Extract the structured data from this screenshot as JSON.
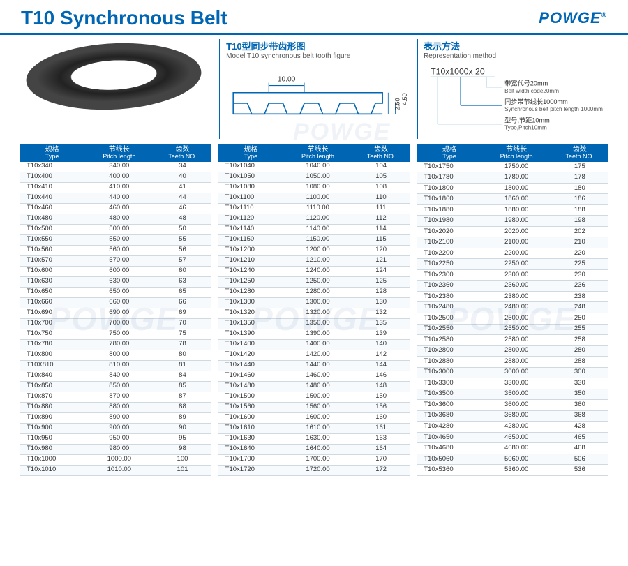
{
  "header": {
    "title": "T10 Synchronous Belt",
    "logo_text": "POWGE",
    "logo_reg": "®"
  },
  "figures": {
    "tooth": {
      "title_cn": "T10型同步带齿形图",
      "title_en": "Model T10 synchronous belt tooth figure",
      "pitch_dim": "10.00",
      "depth_dim": "2.50",
      "height_dim": "4.50"
    },
    "representation": {
      "title_cn": "表示方法",
      "title_en": "Representation method",
      "example": "T10x1000x 20",
      "lines": [
        {
          "cn": "带宽代号20mm",
          "en": "Belt width code20mm"
        },
        {
          "cn": "同步带节线长1000mm",
          "en": "Synchronous belt pitch length 1000mm"
        },
        {
          "cn": "型号,节距10mm",
          "en": "Type,Pitch10mm"
        }
      ]
    }
  },
  "table_headers": {
    "type_cn": "规格",
    "type_en": "Type",
    "pitch_cn": "节线长",
    "pitch_en": "Pitch length",
    "teeth_cn": "齿数",
    "teeth_en": "Teeth NO."
  },
  "columns": [
    {
      "rows": [
        [
          "T10x340",
          "340.00",
          "34"
        ],
        [
          "T10x400",
          "400.00",
          "40"
        ],
        [
          "T10x410",
          "410.00",
          "41"
        ],
        [
          "T10x440",
          "440.00",
          "44"
        ],
        [
          "T10x460",
          "460.00",
          "46"
        ],
        [
          "T10x480",
          "480.00",
          "48"
        ],
        [
          "T10x500",
          "500.00",
          "50"
        ],
        [
          "T10x550",
          "550.00",
          "55"
        ],
        [
          "T10x560",
          "560.00",
          "56"
        ],
        [
          "T10x570",
          "570.00",
          "57"
        ],
        [
          "T10x600",
          "600.00",
          "60"
        ],
        [
          "T10x630",
          "630.00",
          "63"
        ],
        [
          "T10x650",
          "650.00",
          "65"
        ],
        [
          "T10x660",
          "660.00",
          "66"
        ],
        [
          "T10x690",
          "690.00",
          "69"
        ],
        [
          "T10x700",
          "700.00",
          "70"
        ],
        [
          "T10x750",
          "750.00",
          "75"
        ],
        [
          "T10x780",
          "780.00",
          "78"
        ],
        [
          "T10x800",
          "800.00",
          "80"
        ],
        [
          "T10X810",
          "810.00",
          "81"
        ],
        [
          "T10x840",
          "840.00",
          "84"
        ],
        [
          "T10x850",
          "850.00",
          "85"
        ],
        [
          "T10x870",
          "870.00",
          "87"
        ],
        [
          "T10x880",
          "880.00",
          "88"
        ],
        [
          "T10x890",
          "890.00",
          "89"
        ],
        [
          "T10x900",
          "900.00",
          "90"
        ],
        [
          "T10x950",
          "950.00",
          "95"
        ],
        [
          "T10x980",
          "980.00",
          "98"
        ],
        [
          "T10x1000",
          "1000.00",
          "100"
        ],
        [
          "T10x1010",
          "1010.00",
          "101"
        ]
      ]
    },
    {
      "rows": [
        [
          "T10x1040",
          "1040.00",
          "104"
        ],
        [
          "T10x1050",
          "1050.00",
          "105"
        ],
        [
          "T10x1080",
          "1080.00",
          "108"
        ],
        [
          "T10x1100",
          "1100.00",
          "110"
        ],
        [
          "T10x1110",
          "1110.00",
          "111"
        ],
        [
          "T10x1120",
          "1120.00",
          "112"
        ],
        [
          "T10x1140",
          "1140.00",
          "114"
        ],
        [
          "T10x1150",
          "1150.00",
          "115"
        ],
        [
          "T10x1200",
          "1200.00",
          "120"
        ],
        [
          "T10x1210",
          "1210.00",
          "121"
        ],
        [
          "T10x1240",
          "1240.00",
          "124"
        ],
        [
          "T10x1250",
          "1250.00",
          "125"
        ],
        [
          "T10x1280",
          "1280.00",
          "128"
        ],
        [
          "T10x1300",
          "1300.00",
          "130"
        ],
        [
          "T10x1320",
          "1320.00",
          "132"
        ],
        [
          "T10x1350",
          "1350.00",
          "135"
        ],
        [
          "T10x1390",
          "1390.00",
          "139"
        ],
        [
          "T10x1400",
          "1400.00",
          "140"
        ],
        [
          "T10x1420",
          "1420.00",
          "142"
        ],
        [
          "T10x1440",
          "1440.00",
          "144"
        ],
        [
          "T10x1460",
          "1460.00",
          "146"
        ],
        [
          "T10x1480",
          "1480.00",
          "148"
        ],
        [
          "T10x1500",
          "1500.00",
          "150"
        ],
        [
          "T10x1560",
          "1560.00",
          "156"
        ],
        [
          "T10x1600",
          "1600.00",
          "160"
        ],
        [
          "T10x1610",
          "1610.00",
          "161"
        ],
        [
          "T10x1630",
          "1630.00",
          "163"
        ],
        [
          "T10x1640",
          "1640.00",
          "164"
        ],
        [
          "T10x1700",
          "1700.00",
          "170"
        ],
        [
          "T10x1720",
          "1720.00",
          "172"
        ]
      ]
    },
    {
      "rows": [
        [
          "T10x1750",
          "1750.00",
          "175"
        ],
        [
          "T10x1780",
          "1780.00",
          "178"
        ],
        [
          "T10x1800",
          "1800.00",
          "180"
        ],
        [
          "T10x1860",
          "1860.00",
          "186"
        ],
        [
          "T10x1880",
          "1880.00",
          "188"
        ],
        [
          "T10x1980",
          "1980.00",
          "198"
        ],
        [
          "T10x2020",
          "2020.00",
          "202"
        ],
        [
          "T10x2100",
          "2100.00",
          "210"
        ],
        [
          "T10x2200",
          "2200.00",
          "220"
        ],
        [
          "T10x2250",
          "2250.00",
          "225"
        ],
        [
          "T10x2300",
          "2300.00",
          "230"
        ],
        [
          "T10x2360",
          "2360.00",
          "236"
        ],
        [
          "T10x2380",
          "2380.00",
          "238"
        ],
        [
          "T10x2480",
          "2480.00",
          "248"
        ],
        [
          "T10x2500",
          "2500.00",
          "250"
        ],
        [
          "T10x2550",
          "2550.00",
          "255"
        ],
        [
          "T10x2580",
          "2580.00",
          "258"
        ],
        [
          "T10x2800",
          "2800.00",
          "280"
        ],
        [
          "T10x2880",
          "2880.00",
          "288"
        ],
        [
          "T10x3000",
          "3000.00",
          "300"
        ],
        [
          "T10x3300",
          "3300.00",
          "330"
        ],
        [
          "T10x3500",
          "3500.00",
          "350"
        ],
        [
          "T10x3600",
          "3600.00",
          "360"
        ],
        [
          "T10x3680",
          "3680.00",
          "368"
        ],
        [
          "T10x4280",
          "4280.00",
          "428"
        ],
        [
          "T10x4650",
          "4650.00",
          "465"
        ],
        [
          "T10x4680",
          "4680.00",
          "468"
        ],
        [
          "T10x5060",
          "5060.00",
          "506"
        ],
        [
          "T10x5360",
          "5360.00",
          "536"
        ]
      ]
    }
  ],
  "watermark": "POWGE",
  "colors": {
    "brand": "#0066b3",
    "grid": "#d0d8e0",
    "text": "#333333",
    "row_alt": "#f7fafd"
  }
}
